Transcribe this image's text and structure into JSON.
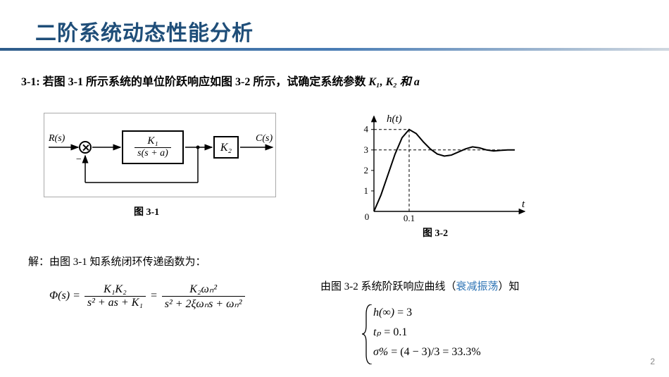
{
  "title": "二阶系统动态性能分析",
  "problem_prefix": "3-1:  若图 3-1 所示系统的单位阶跃响应如图 3-2 所示，试确定系统参数 ",
  "problem_params": "K₁, K₂ 和 a",
  "block_diagram": {
    "input_signal": "R(s)",
    "output_signal": "C(s)",
    "plant_num": "K₁",
    "plant_den": "s(s + a)",
    "gain": "K₂",
    "minus": "−",
    "caption": "图 3-1"
  },
  "step_chart": {
    "type": "line",
    "title": "h(t)",
    "xlabel": "t",
    "xlim": [
      0,
      0.4
    ],
    "ylim": [
      0,
      4.3
    ],
    "yticks": [
      0,
      1,
      2,
      3,
      4
    ],
    "ytick_labels": [
      "0",
      "1",
      "2",
      "3",
      "4"
    ],
    "xticks": [
      0.1
    ],
    "xtick_labels": [
      "0.1"
    ],
    "steady_state": 3,
    "peak_value": 4,
    "peak_time": 0.1,
    "curve_points": [
      [
        0,
        0
      ],
      [
        0.02,
        0.8
      ],
      [
        0.04,
        1.8
      ],
      [
        0.06,
        2.8
      ],
      [
        0.08,
        3.6
      ],
      [
        0.1,
        4.0
      ],
      [
        0.12,
        3.8
      ],
      [
        0.14,
        3.4
      ],
      [
        0.16,
        3.05
      ],
      [
        0.18,
        2.8
      ],
      [
        0.2,
        2.7
      ],
      [
        0.22,
        2.75
      ],
      [
        0.24,
        2.9
      ],
      [
        0.26,
        3.05
      ],
      [
        0.28,
        3.15
      ],
      [
        0.3,
        3.1
      ],
      [
        0.32,
        3.0
      ],
      [
        0.34,
        2.95
      ],
      [
        0.36,
        2.98
      ],
      [
        0.38,
        3.0
      ],
      [
        0.4,
        3.0
      ]
    ],
    "curve_color": "#000000",
    "dash_color": "#000000",
    "axis_color": "#000000",
    "bg": "#ffffff",
    "caption": "图 3-2"
  },
  "solution_line1": "解：由图 3-1 知系统闭环传递函数为：",
  "solution_line2_prefix": "由图 3-2 系统阶跃响应曲线（",
  "solution_line2_hl": "衰减振荡",
  "solution_line2_suffix": "）知",
  "transfer_fn": {
    "lhs": "Φ(s) =",
    "f1_num": "K₁K₂",
    "f1_den": "s² + as + K₁",
    "eq": "=",
    "f2_num": "K₂ωₙ²",
    "f2_den": "s² + 2ξωₙs + ωₙ²"
  },
  "results": {
    "r1_lhs": "h(∞)",
    "r1_rhs": "= 3",
    "r2_lhs": "tₚ",
    "r2_rhs": "= 0.1",
    "r3_lhs": "σ%",
    "r3_rhs": "= (4 − 3)/3 = 33.3%"
  },
  "page_number": "2"
}
